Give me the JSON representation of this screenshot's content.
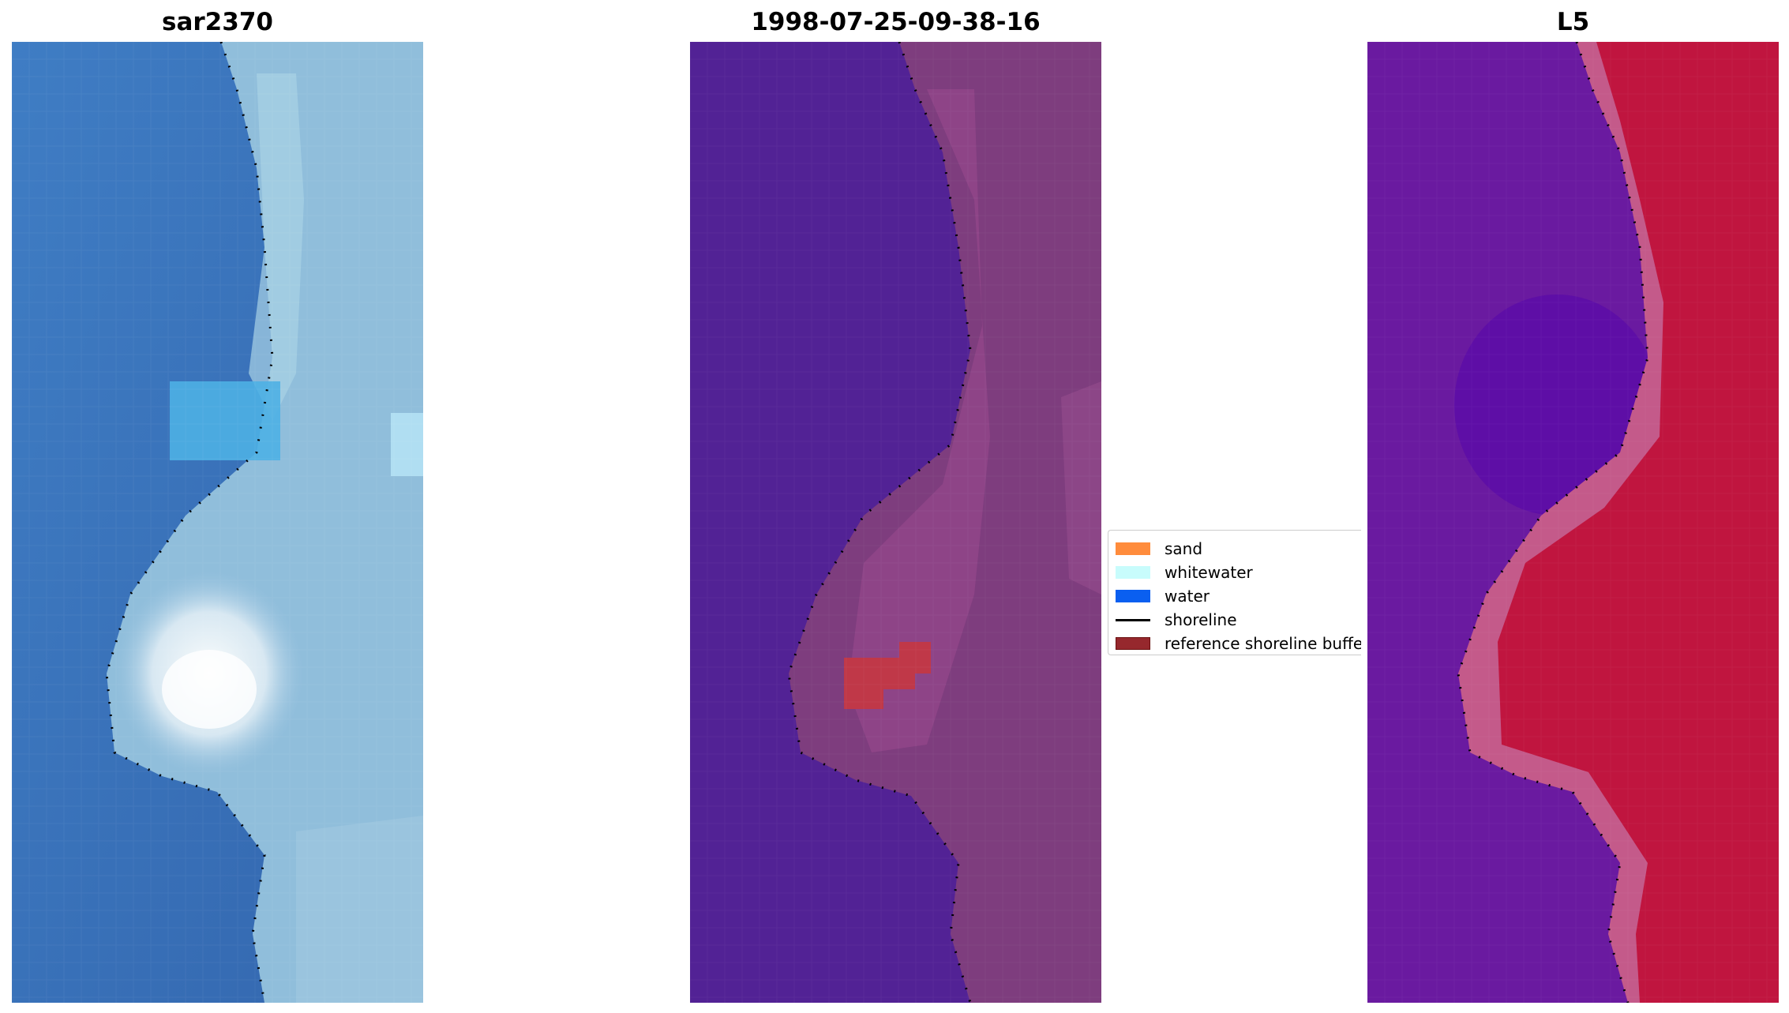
{
  "panels": [
    {
      "id": "rgb",
      "title": "sar2370"
    },
    {
      "id": "classified",
      "title": "1998-07-25-09-38-16"
    },
    {
      "id": "index",
      "title": "L5"
    }
  ],
  "legend": {
    "position": "center",
    "items": [
      {
        "label": "sand",
        "kind": "patch",
        "color": "#ff8c3c"
      },
      {
        "label": "whitewater",
        "kind": "patch",
        "color": "#c8fcfc"
      },
      {
        "label": "water",
        "kind": "patch",
        "color": "#0a5ff0"
      },
      {
        "label": "shoreline",
        "kind": "line",
        "color": "#000000"
      },
      {
        "label": "reference shoreline buffer",
        "kind": "patch",
        "color": "#96282d"
      }
    ]
  },
  "colors": {
    "water_rgb": "#3a78c0",
    "nearshore_rgb": "#4eaadf",
    "whitewater_rgb": "#f2f8fb",
    "land_rgb": "#6496be",
    "water_class": "#522295",
    "land_class": "#7c3c7c",
    "buffer_class": "#c03848",
    "water_index": "#6a1aa0",
    "land_index": "#c0153f"
  }
}
